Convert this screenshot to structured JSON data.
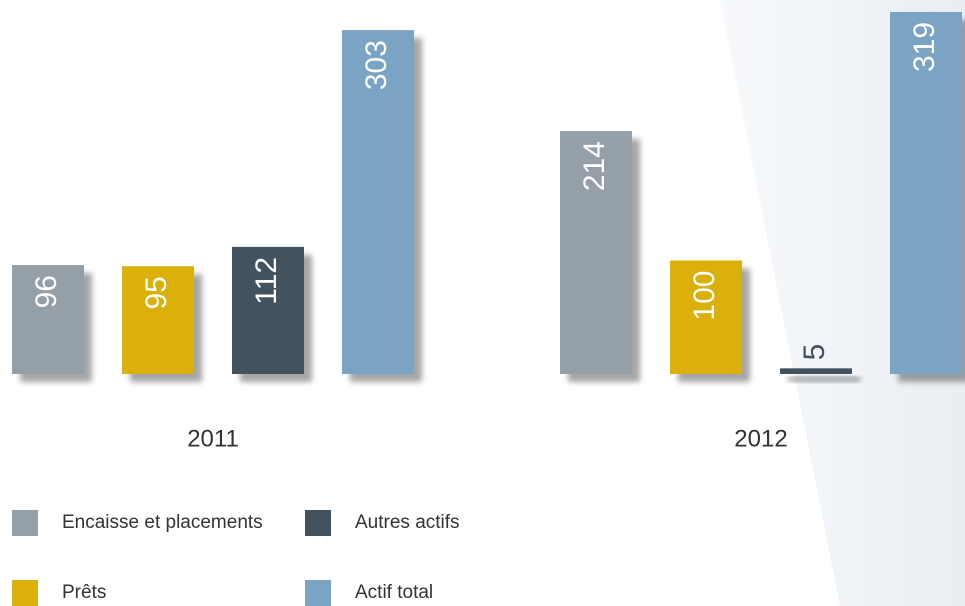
{
  "chart_data": {
    "type": "bar",
    "categories": [
      "2011",
      "2012"
    ],
    "series": [
      {
        "name": "Encaisse et placements",
        "color": "#959fa8",
        "values": [
          96,
          214
        ]
      },
      {
        "name": "Prêts",
        "color": "#dcb00a",
        "values": [
          95,
          100
        ]
      },
      {
        "name": "Autres actifs",
        "color": "#44525d",
        "values": [
          112,
          5
        ]
      },
      {
        "name": "Actif total",
        "color": "#7aa3c4",
        "values": [
          303,
          319
        ]
      }
    ]
  }
}
